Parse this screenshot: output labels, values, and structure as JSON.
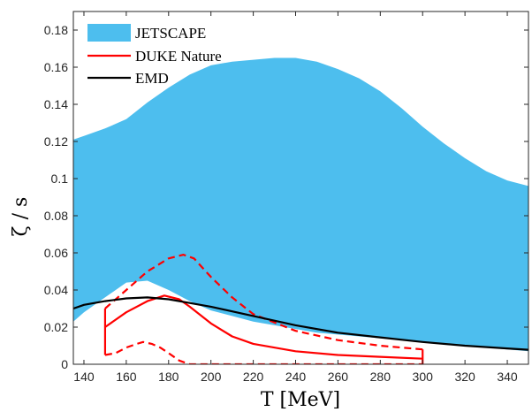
{
  "chart_data": {
    "type": "line",
    "xlabel": "T [MeV]",
    "ylabel": "ζ / s",
    "xlim": [
      135,
      350
    ],
    "ylim": [
      0,
      0.19
    ],
    "xticks": [
      140,
      160,
      180,
      200,
      220,
      240,
      260,
      280,
      300,
      320,
      340
    ],
    "yticks": [
      0,
      0.02,
      0.04,
      0.06,
      0.08,
      0.1,
      0.12,
      0.14,
      0.16,
      0.18
    ],
    "xtick_labels": [
      "140",
      "160",
      "180",
      "200",
      "220",
      "240",
      "260",
      "280",
      "300",
      "320",
      "340"
    ],
    "ytick_labels": [
      "0",
      "0.02",
      "0.04",
      "0.06",
      "0.08",
      "0.1",
      "0.12",
      "0.14",
      "0.16",
      "0.18"
    ],
    "grid": false,
    "legend_position": "top-left",
    "legend": [
      "JETSCAPE",
      "DUKE Nature",
      "EMD"
    ],
    "series": [
      {
        "name": "JETSCAPE",
        "kind": "band",
        "color": "#4DBEEE",
        "x": [
          135,
          140,
          150,
          160,
          170,
          180,
          190,
          200,
          210,
          220,
          230,
          240,
          250,
          260,
          270,
          280,
          290,
          300,
          310,
          320,
          330,
          340,
          350
        ],
        "upper": [
          0.121,
          0.123,
          0.127,
          0.132,
          0.141,
          0.149,
          0.156,
          0.161,
          0.163,
          0.164,
          0.165,
          0.165,
          0.163,
          0.159,
          0.154,
          0.147,
          0.138,
          0.128,
          0.119,
          0.111,
          0.104,
          0.099,
          0.096
        ],
        "lower": [
          0.023,
          0.028,
          0.036,
          0.044,
          0.045,
          0.04,
          0.034,
          0.029,
          0.026,
          0.023,
          0.021,
          0.019,
          0.017,
          0.016,
          0.015,
          0.014,
          0.013,
          0.012,
          0.011,
          0.01,
          0.009,
          0.008,
          0.007
        ]
      },
      {
        "name": "DUKE Nature",
        "kind": "line",
        "color": "#FF0000",
        "style": "solid",
        "x": [
          150,
          160,
          170,
          178,
          185,
          190,
          200,
          210,
          220,
          240,
          260,
          280,
          300
        ],
        "y": [
          0.02,
          0.028,
          0.034,
          0.037,
          0.035,
          0.031,
          0.022,
          0.015,
          0.011,
          0.007,
          0.005,
          0.004,
          0.003
        ]
      },
      {
        "name": "DUKE Nature upper",
        "kind": "line",
        "color": "#FF0000",
        "style": "dashed",
        "x": [
          150,
          160,
          170,
          180,
          187,
          192,
          200,
          210,
          220,
          240,
          260,
          280,
          300
        ],
        "y": [
          0.03,
          0.04,
          0.05,
          0.057,
          0.059,
          0.057,
          0.047,
          0.036,
          0.027,
          0.018,
          0.013,
          0.01,
          0.008
        ]
      },
      {
        "name": "DUKE Nature lower",
        "kind": "line",
        "color": "#FF0000",
        "style": "dashed",
        "x": [
          150,
          155,
          160,
          165,
          168,
          172,
          176,
          180,
          185,
          190,
          200,
          220,
          260,
          300
        ],
        "y": [
          0.005,
          0.006,
          0.009,
          0.011,
          0.012,
          0.011,
          0.009,
          0.006,
          0.002,
          0.0,
          0.0,
          0.0,
          0.0,
          0.0
        ]
      },
      {
        "name": "EMD",
        "kind": "line",
        "color": "#000000",
        "style": "solid",
        "x": [
          135,
          140,
          150,
          160,
          170,
          180,
          190,
          200,
          220,
          240,
          260,
          280,
          300,
          320,
          340,
          350
        ],
        "y": [
          0.03,
          0.032,
          0.034,
          0.0355,
          0.036,
          0.035,
          0.033,
          0.031,
          0.026,
          0.021,
          0.017,
          0.0145,
          0.012,
          0.01,
          0.0085,
          0.0078
        ]
      }
    ]
  }
}
